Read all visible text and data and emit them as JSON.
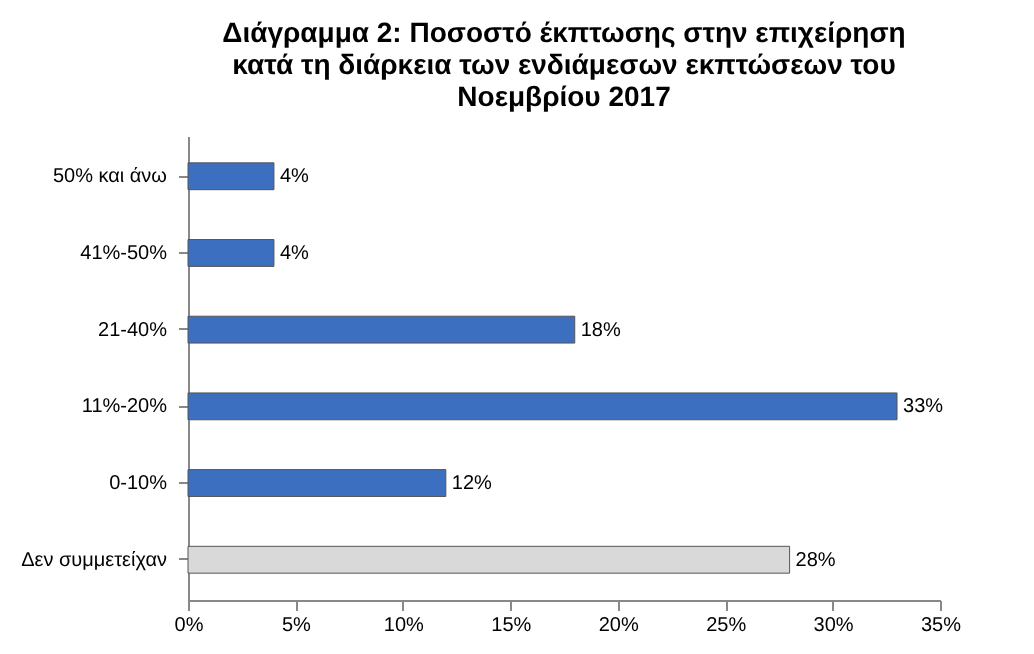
{
  "chart_data": {
    "type": "bar",
    "orientation": "horizontal",
    "title": "Διάγραμμα 2: Ποσοστό έκπτωσης στην επιχείρηση κατά τη διάρκεια των ενδιάμεσων εκπτώσεων του Νοεμβρίου 2017",
    "categories": [
      "50% και άνω",
      "41%-50%",
      "21-40%",
      "11%-20%",
      "0-10%",
      "Δεν συμμετείχαν"
    ],
    "values": [
      4,
      4,
      18,
      33,
      12,
      28
    ],
    "value_labels": [
      "4%",
      "4%",
      "18%",
      "33%",
      "12%",
      "28%"
    ],
    "colors": [
      "#3c6fbf",
      "#3c6fbf",
      "#3c6fbf",
      "#3c6fbf",
      "#3c6fbf",
      "#d9d9d9"
    ],
    "xlim": [
      0,
      35
    ],
    "xticks": [
      {
        "value": 0,
        "label": "0%"
      },
      {
        "value": 5,
        "label": "5%"
      },
      {
        "value": 10,
        "label": "10%"
      },
      {
        "value": 15,
        "label": "15%"
      },
      {
        "value": 20,
        "label": "20%"
      },
      {
        "value": 25,
        "label": "25%"
      },
      {
        "value": 30,
        "label": "30%"
      },
      {
        "value": 35,
        "label": "35%"
      }
    ],
    "grid": false
  }
}
